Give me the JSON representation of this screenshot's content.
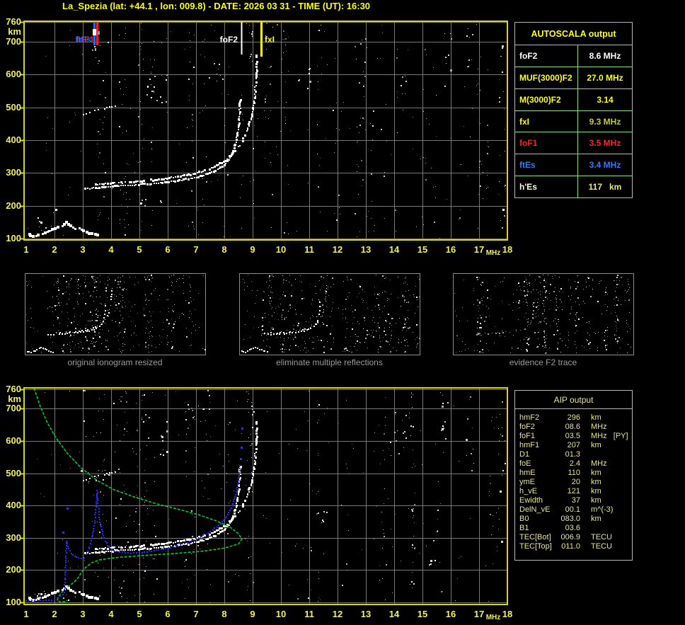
{
  "title": "La_Spezia (lat: +44.1 , lon: 009.8) - DATE: 2026 03 31 - TIME (UT): 16:30",
  "colors": {
    "background": "#000000",
    "title_yellow": "#ffff00",
    "axis_yellow": "#f2f258",
    "frame_yellow": "#d9d900",
    "grid_gray": "#767676",
    "table_green": "#80e080",
    "aip_text": "#e6e494",
    "caption_gray": "#9a9a9a",
    "trace_white": "#ffffff",
    "profile_green": "#00cc33",
    "fit_blue": "#2a2aff",
    "marker_blue": "#1a6dff",
    "marker_red": "#ff1f1f"
  },
  "autoscala": {
    "title": "AUTOSCALA output",
    "rows": [
      {
        "param": "foF2",
        "value": "8.6 MHz",
        "color": "#ffffff",
        "value_color": "#ffffff"
      },
      {
        "param": "MUF(3000)F2",
        "value": "27.0 MHz",
        "color": "#ffff00",
        "value_color": "#ffff00"
      },
      {
        "param": "M(3000)F2",
        "value": "3.14",
        "color": "#ffff00",
        "value_color": "#ffff00"
      },
      {
        "param": "fxI",
        "value": "9.3 MHz",
        "color": "#ffff00",
        "value_color": "#c8c832"
      },
      {
        "param": "foF1",
        "value": "3.5 MHz",
        "color": "#ff1f1f",
        "value_color": "#ff1f1f"
      },
      {
        "param": "ftEs",
        "value": "3.4 MHz",
        "color": "#2e7bff",
        "value_color": "#2e7bff"
      },
      {
        "param": "h'Es",
        "value": "117   km",
        "color": "#ffffd0",
        "value_color": "#e8e87a"
      }
    ]
  },
  "aip": {
    "title": "AIP output",
    "rows": [
      {
        "param": "hmF2",
        "value": "296",
        "unit": "km",
        "note": ""
      },
      {
        "param": "foF2",
        "value": "08.6",
        "unit": "MHz",
        "note": ""
      },
      {
        "param": "foF1",
        "value": "03.5",
        "unit": "MHz",
        "note": "[PY]"
      },
      {
        "param": "hmF1",
        "value": "207",
        "unit": "km",
        "note": ""
      },
      {
        "param": "D1",
        "value": "01.3",
        "unit": "",
        "note": ""
      },
      {
        "param": "foE",
        "value": "2.4",
        "unit": "MHz",
        "note": ""
      },
      {
        "param": "hmE",
        "value": "110",
        "unit": "km",
        "note": ""
      },
      {
        "param": "ymE",
        "value": "20",
        "unit": "km",
        "note": ""
      },
      {
        "param": "h_vE",
        "value": "121",
        "unit": "km",
        "note": ""
      },
      {
        "param": "Ewidth",
        "value": "37",
        "unit": "km",
        "note": ""
      },
      {
        "param": "DelN_vE",
        "value": "00.1",
        "unit": "m^(-3)",
        "note": ""
      },
      {
        "param": "B0",
        "value": "083.0",
        "unit": "km",
        "note": ""
      },
      {
        "param": "B1",
        "value": "03.6",
        "unit": "",
        "note": ""
      },
      {
        "param": "TEC[Bot]",
        "value": "006.9",
        "unit": "TECU",
        "note": ""
      },
      {
        "param": "TEC[Top]",
        "value": "011.0",
        "unit": "TECU",
        "note": ""
      }
    ]
  },
  "panels": [
    {
      "caption": "original ionogram resized"
    },
    {
      "caption": "eliminate multiple reflections"
    },
    {
      "caption": "evidence F2 trace"
    }
  ],
  "chart_data": [
    {
      "type": "scatter",
      "name": "ionogram-top",
      "title": "scaled ionogram with AUTOSCALA characteristic markers",
      "xlabel": "MHz",
      "ylabel": "km",
      "xlim": [
        1,
        18
      ],
      "ylim": [
        100,
        760
      ],
      "x_ticks": [
        1,
        2,
        3,
        4,
        5,
        6,
        7,
        8,
        9,
        10,
        11,
        12,
        13,
        14,
        15,
        16,
        17,
        18
      ],
      "y_ticks": [
        100,
        200,
        300,
        400,
        500,
        600,
        700,
        760
      ],
      "grid": true,
      "markers": [
        {
          "label": "foF1",
          "mhz": 3.5,
          "color": "#ff1f1f"
        },
        {
          "label": "ftEs",
          "mhz": 3.4,
          "color": "#1a6dff"
        },
        {
          "label": "foF2",
          "mhz": 8.6,
          "color": "#ffffff"
        },
        {
          "label": "fxI",
          "mhz": 9.3,
          "color": "#ffff00"
        }
      ],
      "series": [
        {
          "name": "Es-layer-echo",
          "units": [
            "MHz",
            "km"
          ],
          "points": [
            [
              1.1,
              112
            ],
            [
              1.25,
              108
            ],
            [
              1.45,
              110
            ],
            [
              1.65,
              116
            ],
            [
              1.85,
              122
            ],
            [
              2.05,
              130
            ],
            [
              2.25,
              139
            ],
            [
              2.45,
              150
            ],
            [
              2.6,
              141
            ],
            [
              2.75,
              132
            ],
            [
              2.95,
              125
            ],
            [
              3.15,
              119
            ],
            [
              3.35,
              115
            ],
            [
              3.5,
              112
            ]
          ]
        },
        {
          "name": "F-trace-ordinary",
          "units": [
            "MHz",
            "km"
          ],
          "points": [
            [
              3.1,
              252
            ],
            [
              3.6,
              256
            ],
            [
              4.2,
              260
            ],
            [
              4.9,
              264
            ],
            [
              5.6,
              268
            ],
            [
              6.2,
              274
            ],
            [
              6.8,
              282
            ],
            [
              7.3,
              293
            ],
            [
              7.7,
              307
            ],
            [
              8.0,
              324
            ],
            [
              8.2,
              344
            ],
            [
              8.33,
              368
            ],
            [
              8.42,
              395
            ],
            [
              8.48,
              425
            ],
            [
              8.52,
              458
            ],
            [
              8.55,
              492
            ],
            [
              8.56,
              522
            ]
          ]
        },
        {
          "name": "F-trace-extraordinary",
          "units": [
            "MHz",
            "km"
          ],
          "points": [
            [
              3.3,
              264
            ],
            [
              3.9,
              268
            ],
            [
              4.5,
              271
            ],
            [
              5.1,
              275
            ],
            [
              5.7,
              280
            ],
            [
              6.3,
              287
            ],
            [
              6.9,
              297
            ],
            [
              7.4,
              309
            ],
            [
              7.8,
              324
            ],
            [
              8.1,
              341
            ],
            [
              8.35,
              361
            ],
            [
              8.55,
              384
            ],
            [
              8.72,
              409
            ],
            [
              8.85,
              437
            ],
            [
              8.95,
              467
            ],
            [
              9.03,
              499
            ],
            [
              9.08,
              534
            ],
            [
              9.12,
              574
            ],
            [
              9.15,
              618
            ],
            [
              9.17,
              665
            ]
          ]
        },
        {
          "name": "second-hop-echo",
          "units": [
            "MHz",
            "km"
          ],
          "points": [
            [
              2.95,
              476
            ],
            [
              3.2,
              482
            ],
            [
              3.45,
              488
            ],
            [
              3.7,
              494
            ],
            [
              3.95,
              500
            ],
            [
              4.15,
              505
            ]
          ]
        }
      ]
    },
    {
      "type": "scatter",
      "name": "ionogram-bottom",
      "title": "ionogram with AIP electron density profile and fitted trace",
      "xlabel": "MHz",
      "ylabel": "km",
      "xlim": [
        1,
        18
      ],
      "ylim": [
        100,
        760
      ],
      "x_ticks": [
        1,
        2,
        3,
        4,
        5,
        6,
        7,
        8,
        9,
        10,
        11,
        12,
        13,
        14,
        15,
        16,
        17,
        18
      ],
      "y_ticks": [
        100,
        200,
        300,
        400,
        500,
        600,
        700,
        760
      ],
      "grid": true,
      "echo_series_from": 0,
      "series": [
        {
          "name": "electron-density-profile",
          "color": "#00cc33",
          "units": [
            "MHz",
            "km"
          ],
          "points": [
            [
              1.28,
              763
            ],
            [
              1.5,
              706
            ],
            [
              1.75,
              656
            ],
            [
              2.05,
              610
            ],
            [
              2.45,
              562
            ],
            [
              2.95,
              516
            ],
            [
              3.5,
              478
            ],
            [
              4.1,
              449
            ],
            [
              4.9,
              424
            ],
            [
              5.7,
              403
            ],
            [
              6.4,
              388
            ],
            [
              7.1,
              371
            ],
            [
              7.7,
              353
            ],
            [
              8.2,
              333
            ],
            [
              8.5,
              313
            ],
            [
              8.62,
              296
            ],
            [
              8.5,
              281
            ],
            [
              8.0,
              268
            ],
            [
              7.2,
              258
            ],
            [
              6.2,
              251
            ],
            [
              5.1,
              245
            ],
            [
              4.2,
              239
            ],
            [
              3.6,
              232
            ],
            [
              3.3,
              222
            ],
            [
              3.1,
              208
            ],
            [
              2.95,
              193
            ],
            [
              2.85,
              178
            ],
            [
              2.7,
              163
            ],
            [
              2.5,
              150
            ],
            [
              2.33,
              139
            ],
            [
              2.22,
              127
            ],
            [
              2.13,
              115
            ],
            [
              2.1,
              107
            ],
            [
              2.2,
              101
            ],
            [
              2.38,
              102
            ],
            [
              2.45,
              106
            ]
          ]
        },
        {
          "name": "fitted-trace",
          "color": "#2a2aff",
          "units": [
            "MHz",
            "km"
          ],
          "points": [
            [
              1.0,
              106
            ],
            [
              1.2,
              106
            ],
            [
              1.4,
              106
            ],
            [
              1.6,
              106
            ],
            [
              1.8,
              106
            ],
            [
              2.0,
              107
            ],
            [
              2.1,
              112
            ],
            [
              2.2,
              119
            ],
            [
              2.3,
              126
            ],
            [
              2.35,
              131
            ],
            [
              2.42,
              290
            ],
            [
              2.5,
              267
            ],
            [
              2.6,
              252
            ],
            [
              2.72,
              243
            ],
            [
              2.85,
              238
            ],
            [
              2.95,
              237
            ],
            [
              3.05,
              240
            ],
            [
              3.12,
              248
            ],
            [
              3.18,
              258
            ],
            [
              3.24,
              272
            ],
            [
              3.3,
              289
            ],
            [
              3.35,
              309
            ],
            [
              3.39,
              330
            ],
            [
              3.42,
              354
            ],
            [
              3.45,
              379
            ],
            [
              3.47,
              404
            ],
            [
              3.49,
              428
            ],
            [
              3.5,
              446
            ],
            [
              3.52,
              424
            ],
            [
              3.55,
              398
            ],
            [
              3.58,
              372
            ],
            [
              3.62,
              348
            ],
            [
              3.67,
              326
            ],
            [
              3.73,
              306
            ],
            [
              3.8,
              290
            ],
            [
              3.88,
              277
            ],
            [
              3.97,
              268
            ],
            [
              4.1,
              261
            ],
            [
              4.3,
              256
            ],
            [
              4.5,
              254
            ],
            [
              4.7,
              253
            ],
            [
              4.9,
              254
            ],
            [
              5.1,
              255
            ],
            [
              5.35,
              258
            ],
            [
              5.6,
              261
            ],
            [
              5.85,
              265
            ],
            [
              6.1,
              270
            ],
            [
              6.35,
              276
            ],
            [
              6.6,
              283
            ],
            [
              6.85,
              291
            ],
            [
              7.1,
              300
            ],
            [
              7.35,
              311
            ],
            [
              7.6,
              324
            ],
            [
              7.8,
              338
            ],
            [
              7.98,
              354
            ],
            [
              8.12,
              372
            ],
            [
              8.24,
              392
            ],
            [
              8.33,
              413
            ],
            [
              8.4,
              434
            ],
            [
              8.46,
              456
            ],
            [
              8.5,
              478
            ],
            [
              8.53,
              500
            ],
            [
              8.55,
              522
            ]
          ]
        },
        {
          "name": "fitted-trace-isolated-points",
          "color": "#2a2aff",
          "units": [
            "MHz",
            "km"
          ],
          "points": [
            [
              8.57,
              545
            ],
            [
              8.6,
              580
            ],
            [
              8.62,
              640
            ],
            [
              2.45,
              392
            ],
            [
              2.3,
              318
            ]
          ]
        }
      ]
    }
  ]
}
